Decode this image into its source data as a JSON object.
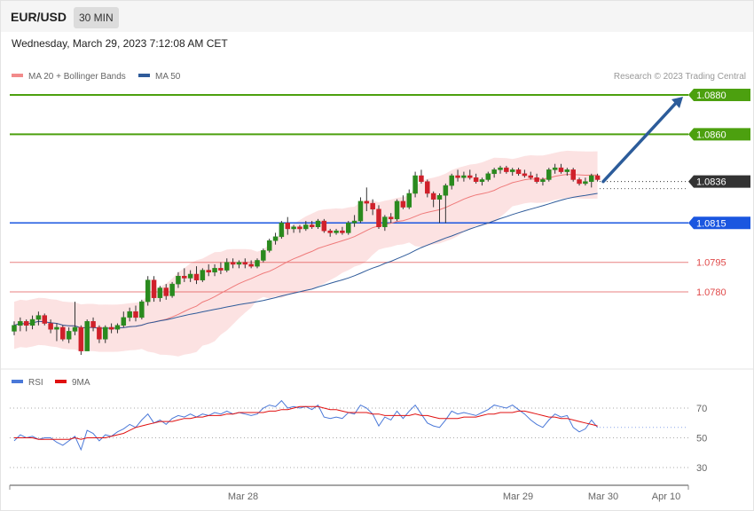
{
  "header": {
    "symbol": "EUR/USD",
    "timeframe": "30 MIN"
  },
  "date_text": "Wednesday, March 29, 2023 7:12:08 AM CET",
  "legend_main": [
    {
      "label": "MA 20 + Bollinger Bands",
      "color": "#f28b8b"
    },
    {
      "label": "MA 50",
      "color": "#2f5b9a"
    }
  ],
  "credit": "Research © 2023 Trading Central",
  "legend_rsi": [
    {
      "label": "RSI",
      "color": "#4a78d8"
    },
    {
      "label": "9MA",
      "color": "#e01010"
    }
  ],
  "colors": {
    "up": "#2a8a1e",
    "down": "#d0202a",
    "resistance": "#4ca00f",
    "support_blue": "#1a56e0",
    "support_red": "#e04a4a",
    "current": "#333333",
    "arrow": "#2c5c9a",
    "band": "#fbd8d8"
  },
  "chart_data": {
    "type": "candlestick",
    "symbol": "EUR/USD",
    "interval": "30 MIN",
    "ylim": [
      1.0752,
      1.0882
    ],
    "x_ticks": [
      "Mar 28",
      "Mar 29",
      "Mar 30",
      "Apr 10"
    ],
    "current_price": 1.0836,
    "levels": [
      {
        "value": 1.088,
        "label": "1.0880",
        "type": "resistance"
      },
      {
        "value": 1.086,
        "label": "1.0860",
        "type": "resistance"
      },
      {
        "value": 1.0836,
        "label": "1.0836",
        "type": "current"
      },
      {
        "value": 1.0815,
        "label": "1.0815",
        "type": "support"
      },
      {
        "value": 1.0795,
        "label": "1.0795",
        "type": "support"
      },
      {
        "value": 1.078,
        "label": "1.0780",
        "type": "support"
      }
    ],
    "forecast_arrow": {
      "from": 1.0836,
      "to": 1.088
    },
    "candles": [
      [
        1.076,
        1.0765,
        1.0758,
        1.0763
      ],
      [
        1.0763,
        1.0767,
        1.076,
        1.0765
      ],
      [
        1.0765,
        1.0766,
        1.076,
        1.0763
      ],
      [
        1.0763,
        1.0768,
        1.0761,
        1.0766
      ],
      [
        1.0766,
        1.077,
        1.0763,
        1.0768
      ],
      [
        1.0768,
        1.0769,
        1.0763,
        1.0764
      ],
      [
        1.0764,
        1.0766,
        1.0759,
        1.0761
      ],
      [
        1.0761,
        1.0764,
        1.0755,
        1.0762
      ],
      [
        1.0762,
        1.0763,
        1.0755,
        1.0756
      ],
      [
        1.0756,
        1.0762,
        1.0754,
        1.076
      ],
      [
        1.076,
        1.0775,
        1.0758,
        1.0762
      ],
      [
        1.0762,
        1.0763,
        1.0748,
        1.075
      ],
      [
        1.075,
        1.0766,
        1.075,
        1.0765
      ],
      [
        1.0765,
        1.0767,
        1.076,
        1.0762
      ],
      [
        1.0762,
        1.0763,
        1.0754,
        1.0756
      ],
      [
        1.0756,
        1.0763,
        1.0754,
        1.0762
      ],
      [
        1.0762,
        1.0764,
        1.0759,
        1.0761
      ],
      [
        1.0761,
        1.0764,
        1.0759,
        1.0763
      ],
      [
        1.0763,
        1.077,
        1.0762,
        1.0767
      ],
      [
        1.0767,
        1.0772,
        1.0765,
        1.077
      ],
      [
        1.077,
        1.0773,
        1.0765,
        1.0767
      ],
      [
        1.0767,
        1.0776,
        1.0766,
        1.0775
      ],
      [
        1.0775,
        1.0788,
        1.0773,
        1.0786
      ],
      [
        1.0786,
        1.0788,
        1.0775,
        1.0777
      ],
      [
        1.0777,
        1.0783,
        1.0775,
        1.0782
      ],
      [
        1.0782,
        1.0784,
        1.0776,
        1.0778
      ],
      [
        1.0778,
        1.0785,
        1.0777,
        1.0784
      ],
      [
        1.0784,
        1.079,
        1.0782,
        1.0788
      ],
      [
        1.0788,
        1.0792,
        1.0785,
        1.0787
      ],
      [
        1.0787,
        1.0791,
        1.0785,
        1.0789
      ],
      [
        1.0789,
        1.0793,
        1.0784,
        1.0786
      ],
      [
        1.0786,
        1.0792,
        1.0785,
        1.0791
      ],
      [
        1.0791,
        1.0794,
        1.0788,
        1.079
      ],
      [
        1.079,
        1.0794,
        1.0788,
        1.0792
      ],
      [
        1.0792,
        1.0795,
        1.0789,
        1.0791
      ],
      [
        1.0791,
        1.0797,
        1.079,
        1.0795
      ],
      [
        1.0795,
        1.0797,
        1.0792,
        1.0794
      ],
      [
        1.0794,
        1.0796,
        1.0792,
        1.0795
      ],
      [
        1.0795,
        1.0797,
        1.0792,
        1.0794
      ],
      [
        1.0794,
        1.0796,
        1.0792,
        1.0793
      ],
      [
        1.0793,
        1.0797,
        1.0792,
        1.0796
      ],
      [
        1.0796,
        1.0802,
        1.0795,
        1.0801
      ],
      [
        1.0801,
        1.0807,
        1.08,
        1.0806
      ],
      [
        1.0806,
        1.081,
        1.0804,
        1.0808
      ],
      [
        1.0808,
        1.0816,
        1.0807,
        1.0815
      ],
      [
        1.0815,
        1.0818,
        1.0809,
        1.0812
      ],
      [
        1.0812,
        1.0814,
        1.081,
        1.0813
      ],
      [
        1.0813,
        1.0814,
        1.081,
        1.0812
      ],
      [
        1.0812,
        1.0816,
        1.0811,
        1.0814
      ],
      [
        1.0814,
        1.0816,
        1.0812,
        1.0813
      ],
      [
        1.0813,
        1.0817,
        1.0812,
        1.0816
      ],
      [
        1.0816,
        1.0817,
        1.081,
        1.0811
      ],
      [
        1.0811,
        1.0812,
        1.0808,
        1.081
      ],
      [
        1.081,
        1.0812,
        1.0809,
        1.0811
      ],
      [
        1.0811,
        1.0813,
        1.0809,
        1.081
      ],
      [
        1.081,
        1.0816,
        1.0809,
        1.0815
      ],
      [
        1.0815,
        1.0819,
        1.0813,
        1.0816
      ],
      [
        1.0816,
        1.0828,
        1.0815,
        1.0826
      ],
      [
        1.0826,
        1.0833,
        1.0821,
        1.0825
      ],
      [
        1.0825,
        1.0827,
        1.0819,
        1.0822
      ],
      [
        1.0822,
        1.0824,
        1.0812,
        1.0813
      ],
      [
        1.0813,
        1.0819,
        1.0811,
        1.0818
      ],
      [
        1.0818,
        1.082,
        1.0815,
        1.0817
      ],
      [
        1.0817,
        1.0827,
        1.0816,
        1.0826
      ],
      [
        1.0826,
        1.0829,
        1.0822,
        1.0823
      ],
      [
        1.0823,
        1.0832,
        1.0822,
        1.083
      ],
      [
        1.083,
        1.0841,
        1.0828,
        1.0839
      ],
      [
        1.0839,
        1.0842,
        1.0835,
        1.0836
      ],
      [
        1.0836,
        1.0837,
        1.0828,
        1.083
      ],
      [
        1.083,
        1.0831,
        1.0823,
        1.0827
      ],
      [
        1.0827,
        1.083,
        1.0815,
        1.0829
      ],
      [
        1.0829,
        1.0835,
        1.0815,
        1.0834
      ],
      [
        1.0834,
        1.084,
        1.0832,
        1.0839
      ],
      [
        1.0839,
        1.0842,
        1.0836,
        1.0838
      ],
      [
        1.0838,
        1.0841,
        1.0836,
        1.0839
      ],
      [
        1.0839,
        1.0842,
        1.0837,
        1.0838
      ],
      [
        1.0838,
        1.084,
        1.0835,
        1.0836
      ],
      [
        1.0836,
        1.0838,
        1.0834,
        1.0837
      ],
      [
        1.0837,
        1.0841,
        1.0836,
        1.084
      ],
      [
        1.084,
        1.0843,
        1.0838,
        1.0842
      ],
      [
        1.0842,
        1.0844,
        1.084,
        1.0843
      ],
      [
        1.0843,
        1.0844,
        1.084,
        1.0841
      ],
      [
        1.0841,
        1.0843,
        1.0839,
        1.0842
      ],
      [
        1.0842,
        1.0843,
        1.0839,
        1.084
      ],
      [
        1.084,
        1.0842,
        1.0838,
        1.0839
      ],
      [
        1.0839,
        1.0841,
        1.0837,
        1.0838
      ],
      [
        1.0838,
        1.084,
        1.0835,
        1.0836
      ],
      [
        1.0836,
        1.0838,
        1.0834,
        1.0837
      ],
      [
        1.0837,
        1.0843,
        1.0836,
        1.0842
      ],
      [
        1.0842,
        1.0845,
        1.084,
        1.0843
      ],
      [
        1.0843,
        1.0845,
        1.084,
        1.0841
      ],
      [
        1.0841,
        1.0843,
        1.0839,
        1.0842
      ],
      [
        1.0842,
        1.0843,
        1.0836,
        1.0837
      ],
      [
        1.0837,
        1.0838,
        1.0834,
        1.0835
      ],
      [
        1.0835,
        1.0838,
        1.0834,
        1.0836
      ],
      [
        1.0836,
        1.084,
        1.0833,
        1.0839
      ],
      [
        1.0839,
        1.084,
        1.0836,
        1.0837
      ]
    ],
    "rsi": {
      "ylim": [
        20,
        82
      ],
      "ticks": [
        70,
        50,
        30
      ],
      "rsi_values": [
        48,
        52,
        50,
        51,
        49,
        50,
        50,
        47,
        45,
        48,
        51,
        42,
        55,
        53,
        48,
        52,
        51,
        54,
        56,
        59,
        57,
        62,
        66,
        60,
        62,
        59,
        63,
        65,
        64,
        66,
        64,
        66,
        65,
        67,
        66,
        68,
        66,
        67,
        66,
        65,
        66,
        70,
        72,
        71,
        75,
        70,
        71,
        70,
        71,
        69,
        72,
        64,
        63,
        64,
        63,
        67,
        66,
        72,
        70,
        66,
        58,
        64,
        62,
        68,
        63,
        68,
        72,
        66,
        60,
        58,
        57,
        62,
        68,
        66,
        67,
        66,
        65,
        67,
        69,
        72,
        71,
        70,
        72,
        69,
        66,
        62,
        59,
        57,
        62,
        66,
        64,
        65,
        57,
        54,
        56,
        62,
        57
      ],
      "ma_values": [
        50,
        50,
        50,
        50,
        49,
        49,
        49,
        49,
        49,
        49,
        50,
        49,
        50,
        50,
        50,
        50,
        51,
        52,
        53,
        55,
        57,
        58,
        59,
        60,
        61,
        61,
        61,
        62,
        63,
        63,
        64,
        64,
        65,
        65,
        65,
        66,
        66,
        67,
        67,
        67,
        67,
        67,
        68,
        68,
        69,
        69,
        70,
        71,
        71,
        71,
        71,
        70,
        69,
        69,
        68,
        67,
        67,
        67,
        67,
        66,
        66,
        65,
        65,
        65,
        65,
        65,
        66,
        65,
        65,
        64,
        63,
        63,
        63,
        63,
        64,
        64,
        64,
        65,
        66,
        66,
        67,
        67,
        67,
        68,
        68,
        67,
        66,
        65,
        64,
        64,
        63,
        63,
        62,
        61,
        60,
        59,
        58
      ]
    }
  }
}
